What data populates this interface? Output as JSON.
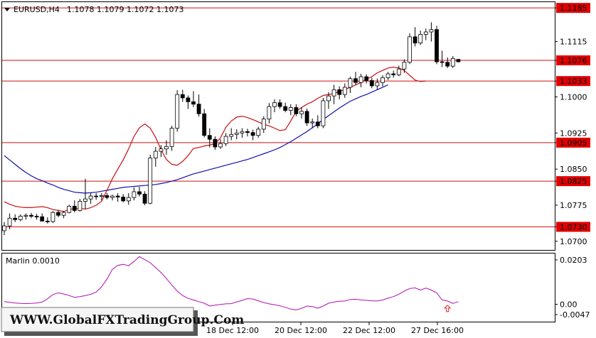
{
  "header": {
    "symbol": "EURUSD,H4",
    "ohlc": "1.1078 1.1079 1.1072 1.1073"
  },
  "indicator": {
    "label": "Marlin 0.0010"
  },
  "watermark": "WWW.GlobalFXTradingGroup.Com",
  "colors": {
    "bull_body": "#ffffff",
    "bear_body": "#000000",
    "level_line": "#d01010",
    "label_fill": "#e00000",
    "fast_ma": "#c81010",
    "slow_ma": "#1010b0",
    "oscillator": "#b010b0",
    "signal_arrow": "#e02020"
  },
  "chart_data": [
    {
      "type": "candlestick",
      "title": "EURUSD,H4",
      "ylim": [
        1.0682,
        1.1197
      ],
      "x_ticks": [
        "18 Dec 12:00",
        "20 Dec 12:00",
        "22 Dec 12:00",
        "27 Dec 16:00"
      ],
      "y_ticks": [
        1.1115,
        1.1,
        1.0925,
        1.085,
        1.0775,
        1.07
      ],
      "levels": [
        1.1185,
        1.1076,
        1.1033,
        1.0905,
        1.0825,
        1.073
      ],
      "current_price": 1.1073,
      "candles": [
        [
          1.0722,
          1.074,
          1.0713,
          1.0732
        ],
        [
          1.0732,
          1.0758,
          1.0725,
          1.0748
        ],
        [
          1.0748,
          1.0756,
          1.074,
          1.0745
        ],
        [
          1.0745,
          1.0756,
          1.0742,
          1.0752
        ],
        [
          1.0752,
          1.0758,
          1.0745,
          1.0754
        ],
        [
          1.0754,
          1.0759,
          1.0748,
          1.0752
        ],
        [
          1.0752,
          1.0757,
          1.0745,
          1.0751
        ],
        [
          1.0751,
          1.0758,
          1.0741,
          1.0742
        ],
        [
          1.0742,
          1.075,
          1.0737,
          1.0741
        ],
        [
          1.0741,
          1.0763,
          1.0738,
          1.076
        ],
        [
          1.076,
          1.0765,
          1.075,
          1.0754
        ],
        [
          1.0754,
          1.0763,
          1.0748,
          1.076
        ],
        [
          1.076,
          1.0776,
          1.0758,
          1.0773
        ],
        [
          1.0773,
          1.0785,
          1.076,
          1.0764
        ],
        [
          1.0764,
          1.0788,
          1.0762,
          1.0783
        ],
        [
          1.0783,
          1.083,
          1.0767,
          1.0788
        ],
        [
          1.0788,
          1.08,
          1.0778,
          1.0794
        ],
        [
          1.0794,
          1.08,
          1.0786,
          1.0793
        ],
        [
          1.0793,
          1.08,
          1.0785,
          1.0795
        ],
        [
          1.0795,
          1.08,
          1.0787,
          1.0791
        ],
        [
          1.0791,
          1.0797,
          1.0785,
          1.0794
        ],
        [
          1.0794,
          1.08,
          1.0782,
          1.0792
        ],
        [
          1.0792,
          1.0798,
          1.0781,
          1.0784
        ],
        [
          1.0784,
          1.08,
          1.0776,
          1.0791
        ],
        [
          1.0791,
          1.0812,
          1.0785,
          1.0803
        ],
        [
          1.0803,
          1.0813,
          1.0793,
          1.0798
        ],
        [
          1.0798,
          1.0804,
          1.0775,
          1.0779
        ],
        [
          1.0779,
          1.088,
          1.0777,
          1.0873
        ],
        [
          1.0873,
          1.0896,
          1.0855,
          1.0887
        ],
        [
          1.0887,
          1.09,
          1.0875,
          1.0892
        ],
        [
          1.0892,
          1.091,
          1.088,
          1.0897
        ],
        [
          1.0897,
          1.094,
          1.0888,
          1.0935
        ],
        [
          1.0935,
          1.1014,
          1.0928,
          1.1005
        ],
        [
          1.1005,
          1.1015,
          1.099,
          1.0998
        ],
        [
          1.0998,
          1.1003,
          1.0975,
          1.099
        ],
        [
          1.099,
          1.1012,
          1.0979,
          1.0985
        ],
        [
          1.0985,
          1.1005,
          1.0959,
          1.0965
        ],
        [
          1.0965,
          1.0975,
          1.0916,
          1.092
        ],
        [
          1.092,
          1.0935,
          1.0895,
          1.0912
        ],
        [
          1.0912,
          1.0918,
          1.089,
          1.0896
        ],
        [
          1.0896,
          1.0912,
          1.0892,
          1.0903
        ],
        [
          1.0903,
          1.0925,
          1.0898,
          1.0918
        ],
        [
          1.0918,
          1.0935,
          1.091,
          1.0922
        ],
        [
          1.0922,
          1.0933,
          1.0912,
          1.0925
        ],
        [
          1.0925,
          1.0935,
          1.0915,
          1.0928
        ],
        [
          1.0928,
          1.0934,
          1.0918,
          1.0926
        ],
        [
          1.0926,
          1.0932,
          1.091,
          1.092
        ],
        [
          1.092,
          1.0938,
          1.0915,
          1.0933
        ],
        [
          1.0933,
          1.096,
          1.0925,
          1.0954
        ],
        [
          1.0954,
          1.0987,
          1.0945,
          1.098
        ],
        [
          1.098,
          1.0995,
          1.0968,
          1.0988
        ],
        [
          1.0988,
          1.0995,
          1.0975,
          1.098
        ],
        [
          1.098,
          1.0988,
          1.0968,
          1.0972
        ],
        [
          1.0972,
          1.0985,
          1.0962,
          1.0978
        ],
        [
          1.0978,
          1.0985,
          1.096,
          1.0965
        ],
        [
          1.0965,
          1.0978,
          1.0955,
          1.097
        ],
        [
          1.097,
          1.0976,
          1.094,
          1.0946
        ],
        [
          1.0946,
          1.0955,
          1.0935,
          1.0948
        ],
        [
          1.0948,
          1.0962,
          1.0935,
          1.094
        ],
        [
          1.094,
          1.0998,
          1.0935,
          1.0992
        ],
        [
          1.0992,
          1.101,
          1.0975,
          1.1002
        ],
        [
          1.1002,
          1.1025,
          1.0985,
          1.1015
        ],
        [
          1.1015,
          1.1022,
          1.0995,
          1.1005
        ],
        [
          1.1005,
          1.1028,
          1.0998,
          1.102
        ],
        [
          1.102,
          1.1042,
          1.1008,
          1.1038
        ],
        [
          1.1038,
          1.1052,
          1.1025,
          1.103
        ],
        [
          1.103,
          1.1048,
          1.102,
          1.1042
        ],
        [
          1.1042,
          1.1047,
          1.1028,
          1.1034
        ],
        [
          1.1034,
          1.104,
          1.1018,
          1.1023
        ],
        [
          1.1023,
          1.1038,
          1.1015,
          1.103
        ],
        [
          1.103,
          1.1045,
          1.1022,
          1.104
        ],
        [
          1.104,
          1.1052,
          1.1035,
          1.1048
        ],
        [
          1.1048,
          1.1055,
          1.104,
          1.1046
        ],
        [
          1.1046,
          1.1065,
          1.1043,
          1.1058
        ],
        [
          1.1058,
          1.1078,
          1.105,
          1.1072
        ],
        [
          1.1072,
          1.1132,
          1.1068,
          1.1125
        ],
        [
          1.1125,
          1.1145,
          1.1105,
          1.1112
        ],
        [
          1.1112,
          1.1138,
          1.1108,
          1.113
        ],
        [
          1.113,
          1.1142,
          1.1118,
          1.1135
        ],
        [
          1.1135,
          1.1155,
          1.1115,
          1.114
        ],
        [
          1.114,
          1.1148,
          1.1068,
          1.1073
        ],
        [
          1.1073,
          1.1096,
          1.1062,
          1.1072
        ],
        [
          1.1072,
          1.1082,
          1.106,
          1.1064
        ],
        [
          1.1064,
          1.1085,
          1.106,
          1.108
        ],
        [
          1.1078,
          1.1079,
          1.1072,
          1.1073
        ]
      ],
      "series": [
        {
          "values": [
            1.0782,
            1.0777,
            1.0773,
            1.0771,
            1.077,
            1.077,
            1.0771,
            1.0772,
            1.077,
            1.0766,
            1.0764,
            1.0762,
            1.0766,
            1.0768,
            1.0768,
            1.0767,
            1.077,
            1.0775,
            1.0783,
            1.0806,
            1.083,
            1.085,
            1.0869,
            1.0892,
            1.0918,
            1.0936,
            1.0944,
            1.0935,
            1.0916,
            1.089,
            1.087,
            1.086,
            1.0858,
            1.0866,
            1.0878,
            1.0893,
            1.0895,
            1.0898,
            1.09,
            1.0903,
            1.0915,
            1.0937,
            1.095,
            1.0958,
            1.096,
            1.0957,
            1.0953,
            1.0948,
            1.0943,
            1.094,
            1.0935,
            1.093,
            1.0932,
            1.095,
            1.097,
            1.0978,
            1.0985,
            1.099,
            1.0997,
            1.1003,
            1.1005,
            1.1007,
            1.1012,
            1.1015,
            1.102,
            1.1025,
            1.103,
            1.1037,
            1.1042,
            1.105,
            1.1055,
            1.106,
            1.1062,
            1.106,
            1.1055,
            1.1045,
            1.1035,
            1.1032,
            1.1033
          ]
        },
        {
          "values": [
            1.0878,
            1.0869,
            1.086,
            1.0851,
            1.0843,
            1.0836,
            1.083,
            1.0826,
            1.0821,
            1.0817,
            1.0812,
            1.0808,
            1.0805,
            1.0802,
            1.0801,
            1.08,
            1.0801,
            1.0802,
            1.0804,
            1.0806,
            1.0808,
            1.081,
            1.0812,
            1.0813,
            1.0814,
            1.0815,
            1.0816,
            1.0817,
            1.0818,
            1.082,
            1.0822,
            1.0825,
            1.0828,
            1.0832,
            1.0836,
            1.084,
            1.0843,
            1.0846,
            1.0849,
            1.0852,
            1.0855,
            1.0858,
            1.0861,
            1.0864,
            1.0867,
            1.087,
            1.0874,
            1.0878,
            1.0882,
            1.0886,
            1.089,
            1.0895,
            1.0901,
            1.0907,
            1.0914,
            1.0921,
            1.0928,
            1.0936,
            1.0944,
            1.0953,
            1.0961,
            1.0969,
            1.0977,
            1.0984,
            1.0991,
            1.0996,
            1.1001,
            1.1005,
            1.101,
            1.1015,
            1.102,
            1.1025
          ]
        }
      ]
    },
    {
      "type": "line",
      "title": "Marlin 0.0010",
      "ylim": [
        -0.0047,
        0.0203
      ],
      "y_ticks": [
        0.0203,
        0.0,
        -0.0047
      ],
      "series": [
        {
          "values": [
            0.0012,
            0.0009,
            0.0006,
            0.0004,
            0.0003,
            0.0004,
            0.0006,
            0.001,
            0.0025,
            0.0045,
            0.0052,
            0.0047,
            0.004,
            0.0032,
            0.0035,
            0.004,
            0.0046,
            0.0056,
            0.008,
            0.0115,
            0.016,
            0.0178,
            0.0183,
            0.0176,
            0.0196,
            0.0218,
            0.0204,
            0.019,
            0.0168,
            0.0145,
            0.0118,
            0.0088,
            0.006,
            0.004,
            0.0027,
            0.002,
            0.0012,
            0.0005,
            -0.0008,
            -0.0004,
            -0.0001,
            0.0002,
            0.0003,
            0.0011,
            0.0018,
            0.0026,
            0.0024,
            0.0016,
            0.0008,
            0.0002,
            -0.0002,
            -0.0007,
            -0.0014,
            -0.0022,
            -0.0026,
            -0.0018,
            -0.0008,
            -0.001,
            -0.0018,
            -0.0008,
            0.0005,
            0.001,
            0.0014,
            0.0015,
            0.0022,
            0.0023,
            0.002,
            0.0018,
            0.0016,
            0.0015,
            0.002,
            0.0028,
            0.0035,
            0.0046,
            0.006,
            0.0072,
            0.0075,
            0.0065,
            0.0074,
            0.0065,
            0.0052,
            0.002,
            0.0015,
            0.0004,
            0.0012
          ]
        }
      ],
      "markers": [
        {
          "type": "up-arrow",
          "index": 82
        }
      ]
    }
  ],
  "xaxis": {
    "labels": [
      "18 Dec 12:00",
      "20 Dec 12:00",
      "22 Dec 12:00",
      "27 Dec 16:00"
    ]
  },
  "scale": {
    "main_prices": [
      "1.1185",
      "1.1115",
      "1.1076",
      "1.1033",
      "1.1000",
      "1.0925",
      "1.0905",
      "1.0850",
      "1.0825",
      "1.0775",
      "1.0730",
      "1.0700"
    ],
    "osc_values": [
      "0.0203",
      "0.00",
      "-0.0047"
    ]
  }
}
